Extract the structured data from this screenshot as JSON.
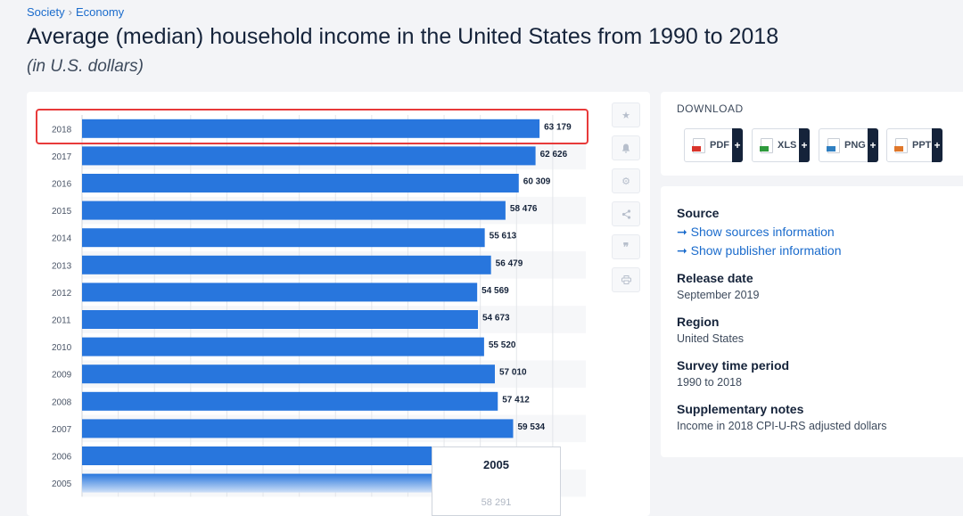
{
  "breadcrumb": {
    "items": [
      "Society",
      "Economy"
    ],
    "separator": "›"
  },
  "page": {
    "title": "Average (median) household income in the United States from 1990 to 2018",
    "subtitle": "(in U.S. dollars)"
  },
  "chart_data": {
    "type": "bar",
    "orientation": "horizontal",
    "categories": [
      "2018",
      "2017",
      "2016",
      "2015",
      "2014",
      "2013",
      "2012",
      "2011",
      "2010",
      "2009",
      "2008",
      "2007",
      "2006",
      "2005"
    ],
    "values": [
      63179,
      62626,
      60309,
      58476,
      55613,
      56479,
      54569,
      54673,
      55520,
      57010,
      57412,
      59534,
      null,
      null
    ],
    "value_labels": [
      "63 179",
      "62 626",
      "60 309",
      "58 476",
      "55 613",
      "56 479",
      "54 569",
      "54 673",
      "55 520",
      "57 010",
      "57 412",
      "59 534",
      "",
      ""
    ],
    "bar_color": "#2876dd",
    "xlim": [
      0,
      66000
    ],
    "grid": true
  },
  "tooltip": {
    "year": "2005",
    "value": "58 291"
  },
  "chart_tools": [
    "star-icon",
    "bell-icon",
    "gear-icon",
    "share-icon",
    "quote-icon",
    "print-icon"
  ],
  "download": {
    "title": "DOWNLOAD",
    "buttons": [
      {
        "label": "PDF",
        "plus": "+",
        "color": "#d9342b"
      },
      {
        "label": "XLS",
        "plus": "+",
        "color": "#2e9a3c"
      },
      {
        "label": "PNG",
        "plus": "+",
        "color": "#2f7fc1"
      },
      {
        "label": "PPT",
        "plus": "+",
        "color": "#e0772a"
      }
    ]
  },
  "info": {
    "source_head": "Source",
    "source_link": "➞ Show sources information",
    "publisher_link": "➞ Show publisher information",
    "release_head": "Release date",
    "release_val": "September 2019",
    "region_head": "Region",
    "region_val": "United States",
    "survey_head": "Survey time period",
    "survey_val": "1990 to 2018",
    "notes_head": "Supplementary notes",
    "notes_val": "Income in 2018 CPI-U-RS adjusted dollars"
  }
}
